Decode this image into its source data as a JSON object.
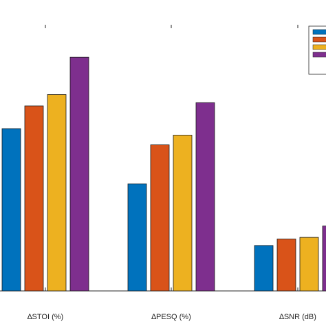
{
  "chart_data": {
    "type": "bar",
    "categories": [
      "∆STOI (%)",
      "∆PESQ (%)",
      "∆SNR (dB)"
    ],
    "series": [
      {
        "color": "#0072BD",
        "values": [
          0.5,
          0.33,
          0.14
        ]
      },
      {
        "color": "#D95319",
        "values": [
          0.57,
          0.45,
          0.16
        ]
      },
      {
        "color": "#EDB120",
        "values": [
          0.605,
          0.48,
          0.165
        ]
      },
      {
        "color": "#7E2F8E",
        "values": [
          0.72,
          0.58,
          0.2
        ]
      }
    ],
    "title": "",
    "xlabel": "",
    "ylabel": "",
    "ylim": [
      0,
      0.82
    ],
    "grid": false,
    "legend": {
      "position": "top-right",
      "entries": [
        "",
        "",
        "",
        ""
      ]
    }
  }
}
